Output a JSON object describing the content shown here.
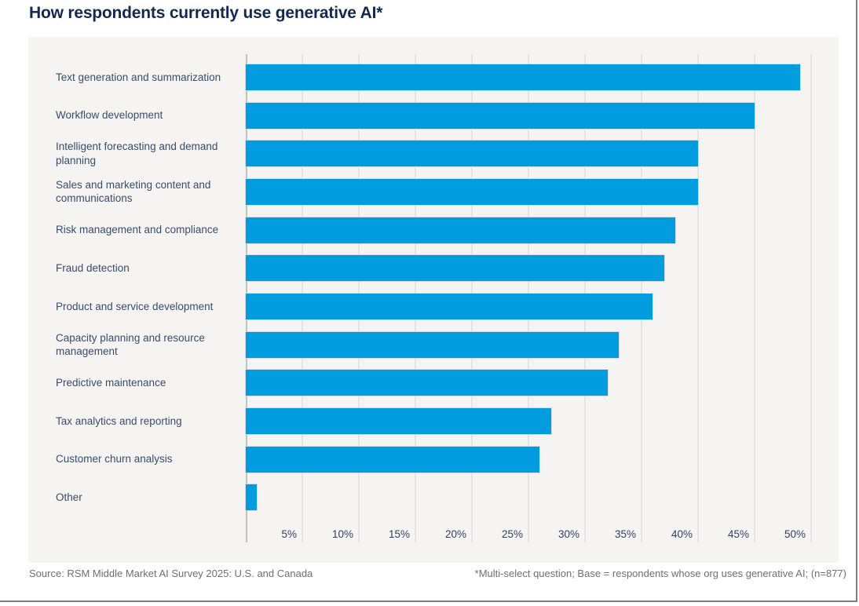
{
  "title": "How respondents currently use generative AI*",
  "chart_data": {
    "type": "bar",
    "orientation": "horizontal",
    "title": "How respondents currently use generative AI*",
    "categories": [
      "Text generation and summarization",
      "Workflow development",
      "Intelligent forecasting and demand planning",
      "Sales and marketing content and communications",
      "Risk management and compliance",
      "Fraud detection",
      "Product and service development",
      "Capacity planning and resource management",
      "Predictive maintenance",
      "Tax analytics and reporting",
      "Customer churn analysis",
      "Other"
    ],
    "values": [
      49,
      45,
      40,
      40,
      38,
      37,
      36,
      33,
      32,
      27,
      26,
      1
    ],
    "unit": "%",
    "xlim": [
      0,
      50
    ],
    "x_ticks": [
      "5%",
      "10%",
      "15%",
      "20%",
      "25%",
      "30%",
      "35%",
      "40%",
      "45%",
      "50%"
    ],
    "grid": "vertical",
    "legend": "none",
    "bar_color": "#009cde",
    "plot_background": "#f5f4f3"
  },
  "footer": {
    "source": "Source: RSM Middle Market AI Survey 2025: U.S. and Canada",
    "note": "*Multi-select question; Base = respondents whose org uses generative AI; (n=877)"
  },
  "colors": {
    "title_text": "#14284e",
    "category_text": "#3b4c66",
    "tick_text": "#33415c",
    "footer_text": "#6f6f6f",
    "bar": "#009cde",
    "gridline": "#e5e4e2",
    "axis_line": "#c2c2c0",
    "panel_background": "#f5f4f3",
    "frame_border": "#7f7f7f"
  }
}
